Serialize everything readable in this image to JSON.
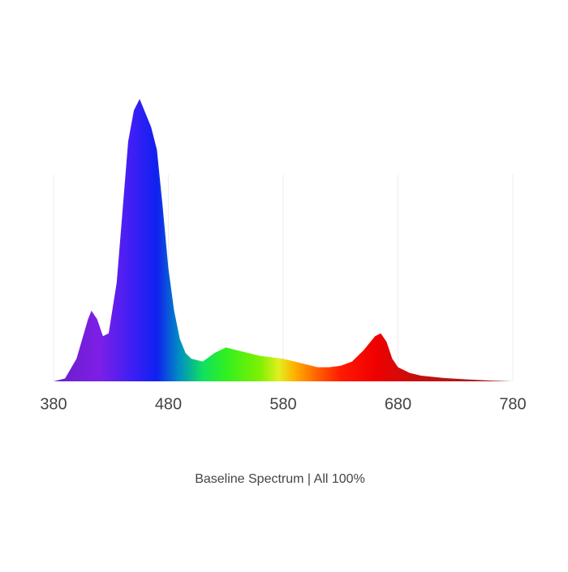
{
  "chart_data": {
    "type": "area",
    "caption": "Baseline Spectrum  | All 100%",
    "x": [
      380,
      390,
      400,
      405,
      410,
      413,
      418,
      423,
      428,
      435,
      440,
      445,
      450,
      455,
      460,
      465,
      470,
      475,
      480,
      485,
      490,
      495,
      500,
      510,
      520,
      530,
      540,
      550,
      560,
      570,
      580,
      590,
      600,
      610,
      620,
      630,
      640,
      650,
      660,
      665,
      670,
      675,
      680,
      690,
      700,
      720,
      740,
      760,
      780
    ],
    "values": [
      0,
      1,
      8,
      15,
      22,
      25,
      22,
      16,
      17,
      35,
      60,
      85,
      96,
      100,
      95,
      90,
      82,
      62,
      40,
      25,
      15,
      10,
      8,
      7,
      10,
      12,
      11,
      10,
      9,
      8.5,
      8,
      7,
      6,
      5,
      5,
      5.5,
      7,
      11,
      16,
      17,
      14,
      8,
      5,
      3,
      2,
      1.2,
      0.7,
      0.3,
      0
    ],
    "xlim": [
      380,
      780
    ],
    "xticks": [
      380,
      480,
      580,
      680,
      780
    ],
    "ylim": [
      0,
      100
    ],
    "grid": true
  }
}
